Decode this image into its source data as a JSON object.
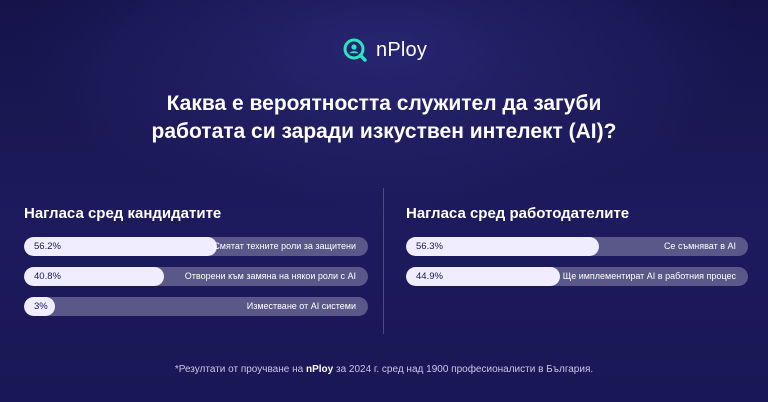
{
  "brand": {
    "name": "nPloy",
    "accent": "#2de3c0"
  },
  "title": {
    "line1": "Каква е вероятността служител да загуби",
    "line2": "работата си заради изкуствен интелект (AI)?"
  },
  "chart_data": [
    {
      "type": "bar",
      "title": "Нагласа сред кандидатите",
      "series": [
        {
          "label": "Смятат техните роли за защитени",
          "value": 56.2,
          "display": "56.2%"
        },
        {
          "label": "Отворени към замяна на някои роли с AI",
          "value": 40.8,
          "display": "40.8%"
        },
        {
          "label": "Изместване от AI системи",
          "value": 3,
          "display": "3%"
        }
      ],
      "ylim": [
        0,
        100
      ]
    },
    {
      "type": "bar",
      "title": "Нагласа сред работодателите",
      "series": [
        {
          "label": "Се съмняват в AI",
          "value": 56.3,
          "display": "56.3%"
        },
        {
          "label": "Ще имплементират AI в работния процес",
          "value": 44.9,
          "display": "44.9%"
        }
      ],
      "ylim": [
        0,
        100
      ]
    }
  ],
  "footnote": {
    "prefix": "*Резултати от проучване на ",
    "brand": "nPloy",
    "suffix": " за 2024 г. сред над 1900 професионалисти в България."
  },
  "colors": {
    "background": "#1a1853",
    "bar_track": "#5a5789",
    "bar_fill": "#efedff"
  }
}
